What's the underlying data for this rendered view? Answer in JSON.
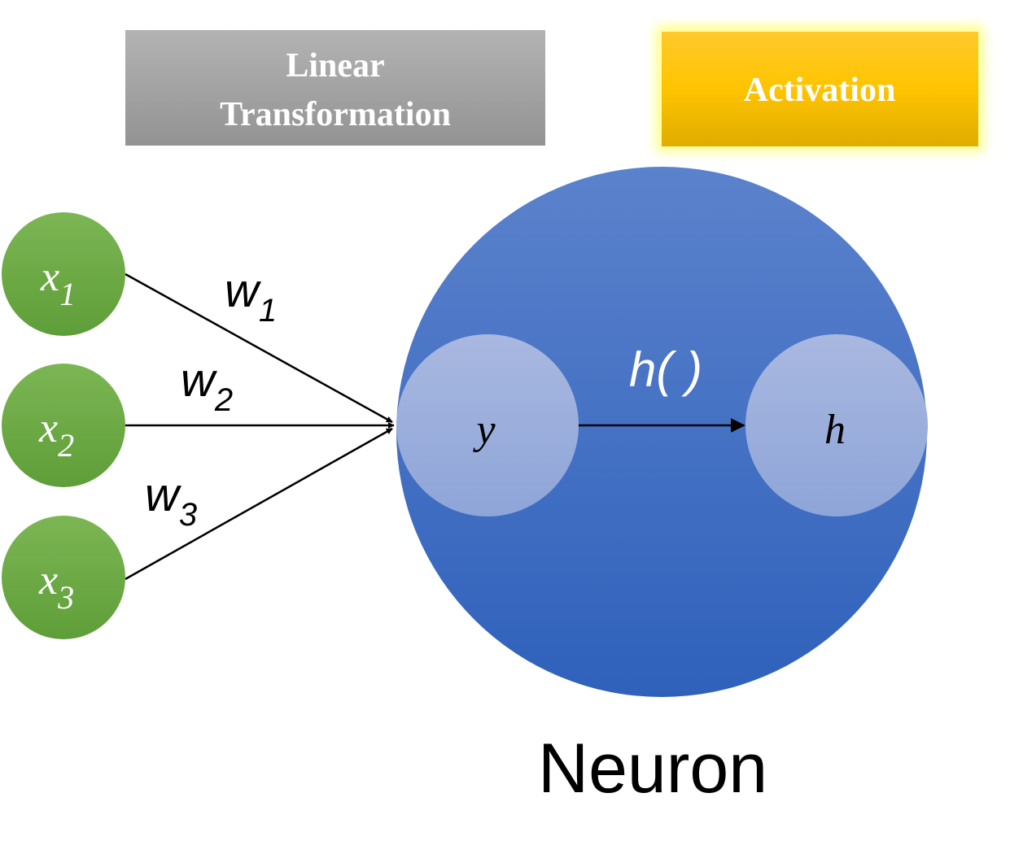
{
  "header": {
    "linear_line1": "Linear",
    "linear_line2": "Transformation",
    "activation": "Activation"
  },
  "inputs": [
    {
      "base": "x",
      "sub": "1"
    },
    {
      "base": "x",
      "sub": "2"
    },
    {
      "base": "x",
      "sub": "3"
    }
  ],
  "weights": [
    {
      "base": "w",
      "sub": "1"
    },
    {
      "base": "w",
      "sub": "2"
    },
    {
      "base": "w",
      "sub": "3"
    }
  ],
  "neuron": {
    "pre_activation": "y",
    "activation_fn": "h( )",
    "output": "h",
    "caption": "Neuron"
  },
  "colors": {
    "linear_box": "#a6a6a6",
    "activation_box": "#ffc000",
    "activation_glow": "#ffff66",
    "input_node": "#70ad47",
    "neuron_body": "#4472c4",
    "inner_node": "#a9b8e0",
    "arrow": "#000000"
  }
}
